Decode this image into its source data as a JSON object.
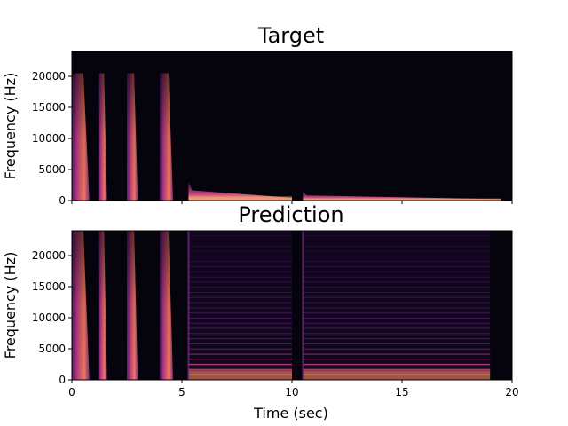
{
  "chart_data": [
    {
      "type": "heatmap",
      "subtype": "spectrogram",
      "title": "Target",
      "xlabel": "",
      "ylabel": "Frequency (Hz)",
      "xlim": [
        0,
        20
      ],
      "ylim": [
        0,
        24000
      ],
      "xticks": [
        0,
        5,
        10,
        15,
        20
      ],
      "xtick_labels_visible": false,
      "yticks": [
        0,
        5000,
        10000,
        15000,
        20000
      ],
      "ytick_labels": [
        "0",
        "5000",
        "10000",
        "15000",
        "20000"
      ],
      "colormap": "magma",
      "background": "#05040c",
      "events": [
        {
          "kind": "broadband_burst",
          "t_start": 0.0,
          "t_end": 0.8,
          "f_max": 20500
        },
        {
          "kind": "broadband_burst",
          "t_start": 1.2,
          "t_end": 1.6,
          "f_max": 20500
        },
        {
          "kind": "broadband_burst",
          "t_start": 2.5,
          "t_end": 3.0,
          "f_max": 20500
        },
        {
          "kind": "broadband_burst",
          "t_start": 4.0,
          "t_end": 4.6,
          "f_max": 20500
        },
        {
          "kind": "low_band_tone",
          "t_start": 5.3,
          "t_end": 10.0,
          "f_max": 3000
        },
        {
          "kind": "low_band_tone",
          "t_start": 10.5,
          "t_end": 19.5,
          "f_max": 1500
        }
      ]
    },
    {
      "type": "heatmap",
      "subtype": "spectrogram",
      "title": "Prediction",
      "xlabel": "Time (sec)",
      "ylabel": "Frequency (Hz)",
      "xlim": [
        0,
        20
      ],
      "ylim": [
        0,
        24000
      ],
      "xticks": [
        0,
        5,
        10,
        15,
        20
      ],
      "xtick_labels": [
        "0",
        "5",
        "10",
        "15",
        "20"
      ],
      "yticks": [
        0,
        5000,
        10000,
        15000,
        20000
      ],
      "ytick_labels": [
        "0",
        "5000",
        "10000",
        "15000",
        "20000"
      ],
      "colormap": "magma",
      "background": "#05040c",
      "events": [
        {
          "kind": "broadband_burst",
          "t_start": 0.0,
          "t_end": 0.8,
          "f_max": 24000
        },
        {
          "kind": "broadband_burst",
          "t_start": 1.2,
          "t_end": 1.6,
          "f_max": 24000
        },
        {
          "kind": "broadband_burst",
          "t_start": 2.5,
          "t_end": 3.0,
          "f_max": 24000
        },
        {
          "kind": "broadband_burst",
          "t_start": 4.0,
          "t_end": 4.6,
          "f_max": 24000
        },
        {
          "kind": "harmonic_noise",
          "t_start": 5.3,
          "t_end": 10.0,
          "f_max": 24000
        },
        {
          "kind": "harmonic_noise",
          "t_start": 10.5,
          "t_end": 19.0,
          "f_max": 24000
        }
      ]
    }
  ]
}
